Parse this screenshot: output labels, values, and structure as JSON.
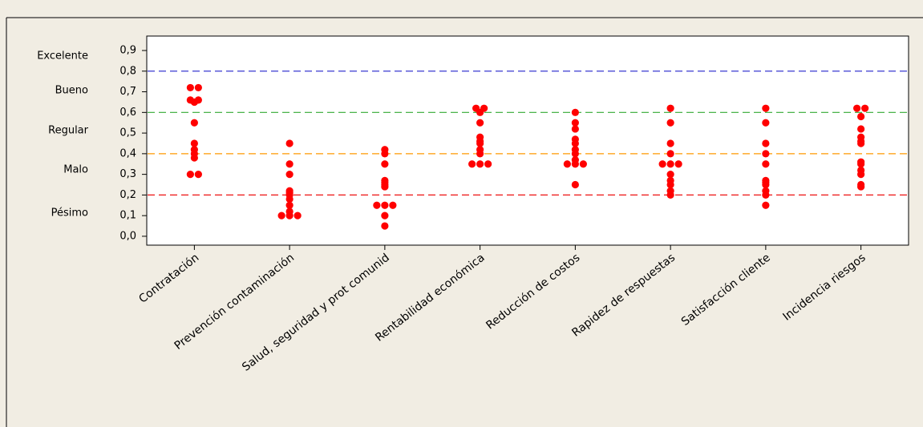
{
  "chart_data": {
    "type": "dotplot",
    "categories": [
      "Contratación",
      "Prevención contaminación",
      "Salud, seguridad y prot comunid",
      "Rentabilidad económica",
      "Reducción de costos",
      "Rapidez de respuestas",
      "Satisfacción cliente",
      "Incidencia riesgos"
    ],
    "values": [
      [
        0.72,
        0.72,
        0.66,
        0.66,
        0.65,
        0.55,
        0.45,
        0.42,
        0.4,
        0.38,
        0.3,
        0.3
      ],
      [
        0.45,
        0.35,
        0.3,
        0.22,
        0.21,
        0.2,
        0.18,
        0.15,
        0.12,
        0.1,
        0.1,
        0.1
      ],
      [
        0.42,
        0.4,
        0.35,
        0.27,
        0.26,
        0.25,
        0.24,
        0.15,
        0.15,
        0.15,
        0.1,
        0.05
      ],
      [
        0.62,
        0.62,
        0.6,
        0.55,
        0.48,
        0.46,
        0.45,
        0.42,
        0.4,
        0.35,
        0.35,
        0.35
      ],
      [
        0.6,
        0.55,
        0.52,
        0.47,
        0.45,
        0.42,
        0.4,
        0.37,
        0.35,
        0.35,
        0.35,
        0.25
      ],
      [
        0.62,
        0.55,
        0.45,
        0.4,
        0.35,
        0.35,
        0.35,
        0.3,
        0.27,
        0.25,
        0.22,
        0.2
      ],
      [
        0.62,
        0.55,
        0.45,
        0.4,
        0.35,
        0.27,
        0.26,
        0.25,
        0.22,
        0.2,
        0.15
      ],
      [
        0.62,
        0.62,
        0.58,
        0.52,
        0.48,
        0.46,
        0.45,
        0.36,
        0.35,
        0.32,
        0.3,
        0.25,
        0.24
      ]
    ],
    "color": "#ff0000",
    "ylim": [
      -0.043,
      0.97
    ],
    "yticks": [
      {
        "value": 0.0,
        "label": "0,0"
      },
      {
        "value": 0.1,
        "label": "0,1"
      },
      {
        "value": 0.2,
        "label": "0,2"
      },
      {
        "value": 0.3,
        "label": "0,3"
      },
      {
        "value": 0.4,
        "label": "0,4"
      },
      {
        "value": 0.5,
        "label": "0,5"
      },
      {
        "value": 0.6,
        "label": "0,6"
      },
      {
        "value": 0.7,
        "label": "0,7"
      },
      {
        "value": 0.8,
        "label": "0,8"
      },
      {
        "value": 0.9,
        "label": "0,9"
      }
    ],
    "reference_lines": [
      {
        "value": 0.8,
        "color": "#2222cc"
      },
      {
        "value": 0.6,
        "color": "#33aa33"
      },
      {
        "value": 0.4,
        "color": "#ff9900"
      },
      {
        "value": 0.2,
        "color": "#ee1111"
      }
    ],
    "ratings": [
      {
        "value": 0.873,
        "label": "Excelente"
      },
      {
        "value": 0.706,
        "label": "Bueno"
      },
      {
        "value": 0.512,
        "label": "Regular"
      },
      {
        "value": 0.322,
        "label": "Malo"
      },
      {
        "value": 0.113,
        "label": "Pésimo"
      }
    ]
  }
}
